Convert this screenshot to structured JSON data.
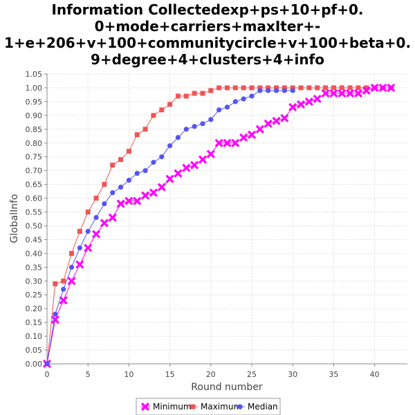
{
  "chart_data": {
    "type": "line",
    "title_lines": [
      "Information Collectedexp+ps+10+pf+0.",
      "0+mode+carriers+maxIter+-",
      "1+e+206+v+100+communitycircle+v+100+beta+0.",
      "9+degree+4+clusters+4+info"
    ],
    "xlabel": "Round number",
    "ylabel": "GlobalInfo",
    "xlim": [
      0,
      44
    ],
    "ylim": [
      0.0,
      1.05
    ],
    "xticks": [
      0,
      5,
      10,
      15,
      20,
      25,
      30,
      35,
      40
    ],
    "yticks": [
      0.0,
      0.05,
      0.1,
      0.15,
      0.2,
      0.25,
      0.3,
      0.35,
      0.4,
      0.45,
      0.5,
      0.55,
      0.6,
      0.65,
      0.7,
      0.75,
      0.8,
      0.85,
      0.9,
      0.95,
      1.0,
      1.05
    ],
    "ytick_labels": [
      "0.00",
      "0.05",
      "0.10",
      "0.15",
      "0.20",
      "0.25",
      "0.30",
      "0.35",
      "0.40",
      "0.45",
      "0.50",
      "0.55",
      "0.60",
      "0.65",
      "0.70",
      "0.75",
      "0.80",
      "0.85",
      "0.90",
      "0.95",
      "1.00",
      "1.05"
    ],
    "grid": true,
    "legend_position": "bottom",
    "series": [
      {
        "name": "Minimum",
        "color": "#ff00ff",
        "marker": "x",
        "x": [
          0,
          1,
          2,
          3,
          4,
          5,
          6,
          7,
          8,
          9,
          10,
          11,
          12,
          13,
          14,
          15,
          16,
          17,
          18,
          19,
          20,
          21,
          22,
          23,
          24,
          25,
          26,
          27,
          28,
          29,
          30,
          31,
          32,
          33,
          34,
          35,
          36,
          37,
          38,
          39,
          40,
          41,
          42
        ],
        "y": [
          0.0,
          0.16,
          0.23,
          0.3,
          0.36,
          0.42,
          0.47,
          0.51,
          0.53,
          0.58,
          0.59,
          0.59,
          0.61,
          0.62,
          0.64,
          0.67,
          0.69,
          0.71,
          0.72,
          0.74,
          0.76,
          0.8,
          0.8,
          0.8,
          0.82,
          0.83,
          0.85,
          0.87,
          0.88,
          0.89,
          0.93,
          0.94,
          0.95,
          0.96,
          0.98,
          0.98,
          0.98,
          0.98,
          0.98,
          0.99,
          1.0,
          1.0,
          1.0
        ]
      },
      {
        "name": "Maximum",
        "color": "#ee5555",
        "marker": "square",
        "x": [
          0,
          1,
          2,
          3,
          4,
          5,
          6,
          7,
          8,
          9,
          10,
          11,
          12,
          13,
          14,
          15,
          16,
          17,
          18,
          19,
          20,
          21,
          22,
          23,
          24,
          25,
          26,
          27,
          28,
          29,
          30,
          31,
          32,
          33,
          34,
          35,
          36,
          37,
          38,
          39,
          40,
          41,
          42
        ],
        "y": [
          0.0,
          0.29,
          0.3,
          0.4,
          0.48,
          0.55,
          0.6,
          0.65,
          0.72,
          0.74,
          0.77,
          0.83,
          0.85,
          0.9,
          0.92,
          0.94,
          0.97,
          0.97,
          0.98,
          0.98,
          0.99,
          1.0,
          1.0,
          1.0,
          1.0,
          1.0,
          1.0,
          1.0,
          1.0,
          1.0,
          1.0,
          1.0,
          1.0,
          1.0,
          1.0,
          1.0,
          1.0,
          1.0,
          1.0,
          1.0,
          1.0,
          1.0,
          1.0
        ]
      },
      {
        "name": "Median",
        "color": "#5555ee",
        "marker": "circle",
        "x": [
          0,
          1,
          2,
          3,
          4,
          5,
          6,
          7,
          8,
          9,
          10,
          11,
          12,
          13,
          14,
          15,
          16,
          17,
          18,
          19,
          20,
          21,
          22,
          23,
          24,
          25,
          26,
          27,
          28,
          29,
          30
        ],
        "y": [
          0.0,
          0.18,
          0.27,
          0.35,
          0.42,
          0.48,
          0.53,
          0.58,
          0.62,
          0.64,
          0.665,
          0.69,
          0.7,
          0.73,
          0.75,
          0.79,
          0.82,
          0.85,
          0.86,
          0.87,
          0.885,
          0.92,
          0.93,
          0.95,
          0.96,
          0.97,
          0.99,
          0.99,
          0.99,
          0.99,
          0.99
        ]
      }
    ]
  }
}
